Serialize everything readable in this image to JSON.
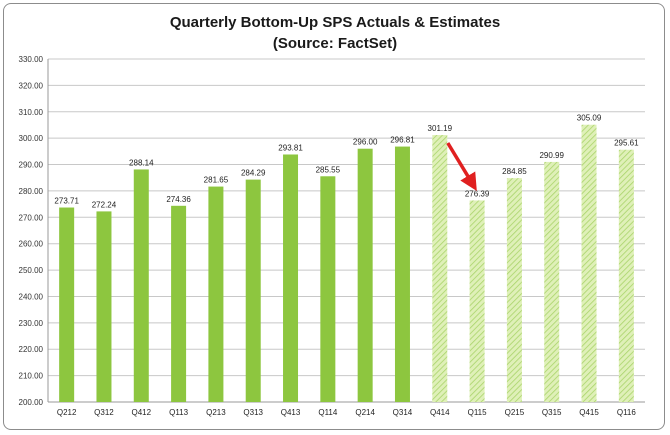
{
  "chart_data": {
    "type": "bar",
    "title": "Quarterly Bottom-Up SPS Actuals & Estimates",
    "subtitle": "(Source: FactSet)",
    "categories": [
      "Q212",
      "Q312",
      "Q412",
      "Q113",
      "Q213",
      "Q313",
      "Q413",
      "Q114",
      "Q214",
      "Q314",
      "Q414",
      "Q115",
      "Q215",
      "Q315",
      "Q415",
      "Q116"
    ],
    "values": [
      273.71,
      272.24,
      288.14,
      274.36,
      281.65,
      284.29,
      293.81,
      285.55,
      296.0,
      296.81,
      301.19,
      276.39,
      284.85,
      290.99,
      305.09,
      295.61
    ],
    "value_labels": [
      "273.71",
      "272.24",
      "288.14",
      "274.36",
      "281.65",
      "284.29",
      "293.81",
      "285.55",
      "296.00",
      "296.81",
      "301.19",
      "276.39",
      "284.85",
      "290.99",
      "305.09",
      "295.61"
    ],
    "bar_kind": [
      "actual",
      "actual",
      "actual",
      "actual",
      "actual",
      "actual",
      "actual",
      "actual",
      "actual",
      "actual",
      "estimate",
      "estimate",
      "estimate",
      "estimate",
      "estimate",
      "estimate"
    ],
    "ylim": [
      200,
      330
    ],
    "yticks": [
      "200.00",
      "210.00",
      "220.00",
      "230.00",
      "240.00",
      "250.00",
      "260.00",
      "270.00",
      "280.00",
      "290.00",
      "300.00",
      "310.00",
      "320.00",
      "330.00"
    ],
    "xlabel": "",
    "ylabel": "",
    "grid": true,
    "colors": {
      "actual": "#8dc63f",
      "estimate": "#d3ea9f",
      "arrow": "#e02020"
    },
    "annotation": {
      "type": "arrow",
      "from_category": "Q414",
      "to_category": "Q115"
    }
  }
}
